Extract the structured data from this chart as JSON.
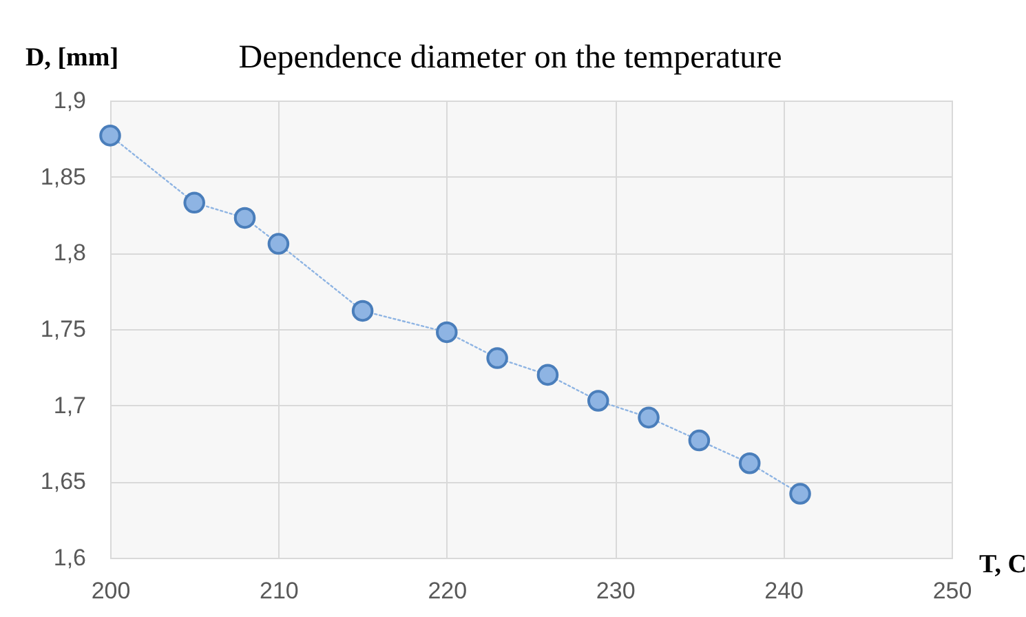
{
  "chart_data": {
    "type": "line",
    "title": "Dependence diameter on the temperature",
    "xlabel": "T, C",
    "ylabel": "D, [mm]",
    "x": [
      200,
      205,
      208,
      210,
      215,
      220,
      223,
      226,
      229,
      232,
      235,
      238,
      241
    ],
    "series": [
      {
        "color": "#8eb4e3",
        "values": [
          1.877,
          1.833,
          1.823,
          1.806,
          1.762,
          1.748,
          1.731,
          1.72,
          1.703,
          1.692,
          1.677,
          1.662,
          1.642
        ]
      }
    ],
    "xlim": [
      200,
      250
    ],
    "xticks": [
      200,
      210,
      220,
      230,
      240,
      250
    ],
    "ylim": [
      1.6,
      1.9
    ],
    "yticks": [
      {
        "value": 1.6,
        "label": "1,6"
      },
      {
        "value": 1.65,
        "label": "1,65"
      },
      {
        "value": 1.7,
        "label": "1,7"
      },
      {
        "value": 1.75,
        "label": "1,75"
      },
      {
        "value": 1.8,
        "label": "1,8"
      },
      {
        "value": 1.85,
        "label": "1,85"
      },
      {
        "value": 1.9,
        "label": "1,9"
      }
    ],
    "grid": true,
    "marker": "circle",
    "line_style": "dotted"
  }
}
